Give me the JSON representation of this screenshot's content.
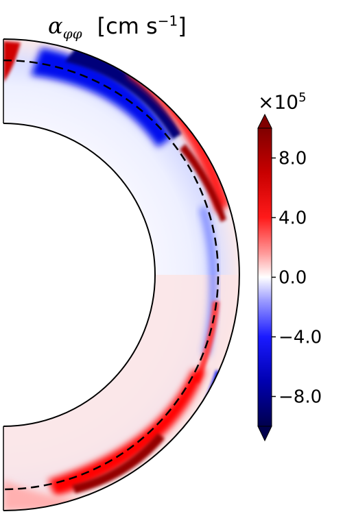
{
  "chart_data": {
    "type": "heatmap",
    "title": "α_φφ  [cm s⁻¹]",
    "title_symbol": "α",
    "title_subscript": "φφ",
    "title_unit": "[cm s",
    "title_unit_exponent": "−1",
    "title_unit_close": "]",
    "colorbar": {
      "multiplier_base": "×10",
      "multiplier_exponent": "5",
      "vmin": -10,
      "vmax": 10,
      "ticks": [
        8.0,
        4.0,
        0.0,
        -4.0,
        -8.0
      ],
      "tick_labels": [
        "8.0",
        "4.0",
        "0.0",
        "−4.0",
        "−8.0"
      ],
      "colormap": "seismic",
      "extend": "both"
    },
    "geometry_note": "meridional half-annulus, inner boundary solid, dashed reference circle near outer boundary",
    "colors": {
      "strong_positive": "#8b0000",
      "positive": "#ff0000",
      "neutral": "#ffffff",
      "negative": "#0000ff",
      "strong_negative": "#00004d"
    }
  }
}
